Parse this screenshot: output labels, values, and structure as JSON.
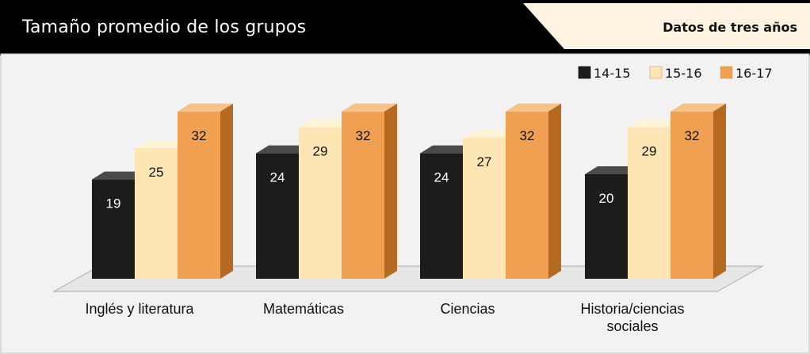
{
  "header": {
    "title": "Tamaño promedio de los grupos",
    "subtitle": "Datos de tres años"
  },
  "colors": {
    "header_bg": "#000000",
    "subtitle_bg": "#fdf3e0",
    "panel_bg": "#f2f2f2",
    "panel_border": "#bfbfbf",
    "series_14_15": "#1a1a1a",
    "series_15_16": "#fde6b4",
    "series_16_17": "#f0a050"
  },
  "chart_data": {
    "type": "bar",
    "title": "Tamaño promedio de los grupos",
    "subtitle": "Datos de tres años",
    "categories": [
      "Inglés y literatura",
      "Matemáticas",
      "Ciencias",
      "Historia/ciencias sociales"
    ],
    "series": [
      {
        "name": "14-15",
        "values": [
          19,
          24,
          24,
          20
        ]
      },
      {
        "name": "15-16",
        "values": [
          25,
          29,
          27,
          29
        ]
      },
      {
        "name": "16-17",
        "values": [
          32,
          32,
          32,
          32
        ]
      }
    ],
    "legend_position": "top-right",
    "grid": false,
    "data_labels": true
  }
}
